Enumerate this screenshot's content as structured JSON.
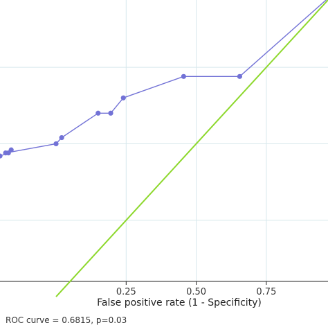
{
  "chart_data": {
    "type": "line",
    "title": "",
    "xlabel": "False positive rate (1 - Specificity)",
    "ylabel": "",
    "xlim": [
      -0.2,
      0.97
    ],
    "ylim": [
      0.05,
      0.97
    ],
    "x_ticks": [
      0.25,
      0.5,
      0.75
    ],
    "x_tick_labels": [
      "0.25",
      "0.50",
      "0.75"
    ],
    "y_gridlines": [
      0.25,
      0.5,
      0.75
    ],
    "grid": true,
    "legend": "none",
    "caption": "ROC curve = 0.6815, p=0.03",
    "series": [
      {
        "points": [
          [
            -0.2,
            0.46
          ],
          [
            -0.17,
            0.47
          ],
          [
            -0.16,
            0.48
          ],
          [
            -0.18,
            0.47
          ],
          [
            0.0,
            0.5
          ],
          [
            0.02,
            0.52
          ],
          [
            0.15,
            0.6
          ],
          [
            0.195,
            0.6
          ],
          [
            0.24,
            0.65
          ],
          [
            0.455,
            0.72
          ],
          [
            0.655,
            0.72
          ],
          [
            1.0,
            1.0
          ]
        ],
        "color": "#7272d6",
        "markers": true
      },
      {
        "points": [
          [
            0,
            0
          ],
          [
            1,
            1
          ]
        ],
        "color": "#8dd82c",
        "markers": false
      }
    ],
    "colors": {
      "grid": "#d6e7ec",
      "axis_frame": "#222222"
    }
  }
}
